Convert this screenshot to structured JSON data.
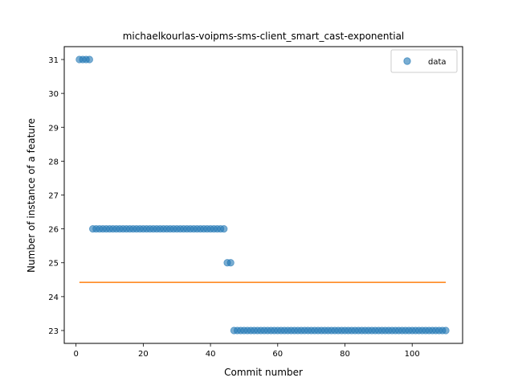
{
  "chart_data": {
    "type": "scatter",
    "title": "michaelkourlas-voipms-sms-client_smart_cast-exponential",
    "xlabel": "Commit number",
    "ylabel": "Number of instance of a feature",
    "xlim": [
      -3.5,
      115
    ],
    "ylim": [
      22.62,
      31.38
    ],
    "x_ticks": [
      0,
      20,
      40,
      60,
      80,
      100
    ],
    "y_ticks": [
      23,
      24,
      25,
      26,
      27,
      28,
      29,
      30,
      31
    ],
    "grid": false,
    "legend_position": "top-right",
    "series": [
      {
        "name": "data",
        "kind": "scatter",
        "color": "#1f77b4",
        "points": [
          [
            1,
            31
          ],
          [
            2,
            31
          ],
          [
            3,
            31
          ],
          [
            4,
            31
          ],
          [
            5,
            26
          ],
          [
            6,
            26
          ],
          [
            7,
            26
          ],
          [
            8,
            26
          ],
          [
            9,
            26
          ],
          [
            10,
            26
          ],
          [
            11,
            26
          ],
          [
            12,
            26
          ],
          [
            13,
            26
          ],
          [
            14,
            26
          ],
          [
            15,
            26
          ],
          [
            16,
            26
          ],
          [
            17,
            26
          ],
          [
            18,
            26
          ],
          [
            19,
            26
          ],
          [
            20,
            26
          ],
          [
            21,
            26
          ],
          [
            22,
            26
          ],
          [
            23,
            26
          ],
          [
            24,
            26
          ],
          [
            25,
            26
          ],
          [
            26,
            26
          ],
          [
            27,
            26
          ],
          [
            28,
            26
          ],
          [
            29,
            26
          ],
          [
            30,
            26
          ],
          [
            31,
            26
          ],
          [
            32,
            26
          ],
          [
            33,
            26
          ],
          [
            34,
            26
          ],
          [
            35,
            26
          ],
          [
            36,
            26
          ],
          [
            37,
            26
          ],
          [
            38,
            26
          ],
          [
            39,
            26
          ],
          [
            40,
            26
          ],
          [
            41,
            26
          ],
          [
            42,
            26
          ],
          [
            43,
            26
          ],
          [
            44,
            26
          ],
          [
            45,
            25
          ],
          [
            46,
            25
          ],
          [
            47,
            23
          ],
          [
            48,
            23
          ],
          [
            49,
            23
          ],
          [
            50,
            23
          ],
          [
            51,
            23
          ],
          [
            52,
            23
          ],
          [
            53,
            23
          ],
          [
            54,
            23
          ],
          [
            55,
            23
          ],
          [
            56,
            23
          ],
          [
            57,
            23
          ],
          [
            58,
            23
          ],
          [
            59,
            23
          ],
          [
            60,
            23
          ],
          [
            61,
            23
          ],
          [
            62,
            23
          ],
          [
            63,
            23
          ],
          [
            64,
            23
          ],
          [
            65,
            23
          ],
          [
            66,
            23
          ],
          [
            67,
            23
          ],
          [
            68,
            23
          ],
          [
            69,
            23
          ],
          [
            70,
            23
          ],
          [
            71,
            23
          ],
          [
            72,
            23
          ],
          [
            73,
            23
          ],
          [
            74,
            23
          ],
          [
            75,
            23
          ],
          [
            76,
            23
          ],
          [
            77,
            23
          ],
          [
            78,
            23
          ],
          [
            79,
            23
          ],
          [
            80,
            23
          ],
          [
            81,
            23
          ],
          [
            82,
            23
          ],
          [
            83,
            23
          ],
          [
            84,
            23
          ],
          [
            85,
            23
          ],
          [
            86,
            23
          ],
          [
            87,
            23
          ],
          [
            88,
            23
          ],
          [
            89,
            23
          ],
          [
            90,
            23
          ],
          [
            91,
            23
          ],
          [
            92,
            23
          ],
          [
            93,
            23
          ],
          [
            94,
            23
          ],
          [
            95,
            23
          ],
          [
            96,
            23
          ],
          [
            97,
            23
          ],
          [
            98,
            23
          ],
          [
            99,
            23
          ],
          [
            100,
            23
          ],
          [
            101,
            23
          ],
          [
            102,
            23
          ],
          [
            103,
            23
          ],
          [
            104,
            23
          ],
          [
            105,
            23
          ],
          [
            106,
            23
          ],
          [
            107,
            23
          ],
          [
            108,
            23
          ],
          [
            109,
            23
          ],
          [
            110,
            23
          ]
        ]
      },
      {
        "kind": "line",
        "color": "#ff7f0e",
        "points": [
          [
            1,
            24.42
          ],
          [
            110,
            24.42
          ]
        ]
      }
    ]
  }
}
